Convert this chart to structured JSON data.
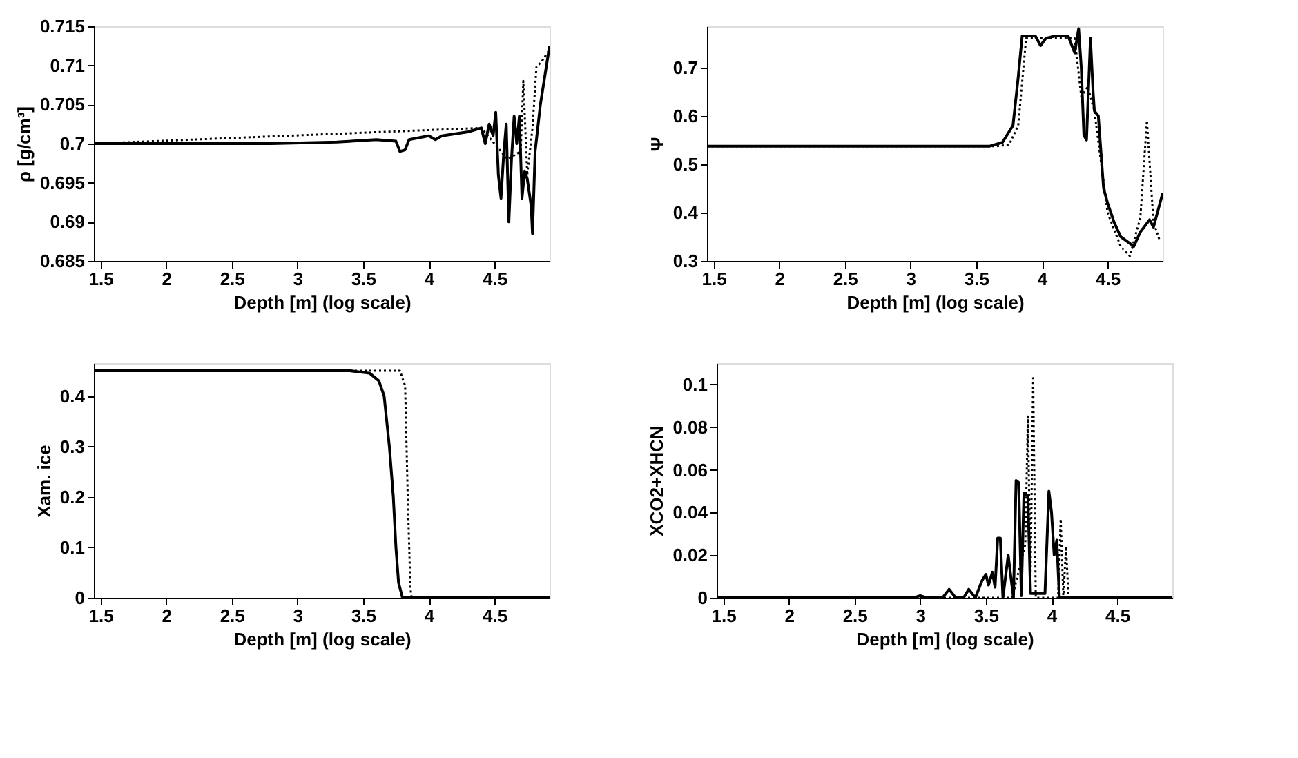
{
  "chart_data": [
    {
      "type": "line",
      "xlabel": "Depth [m] (log scale)",
      "ylabel": "ρ [g/cm³]",
      "xlim": [
        1.45,
        4.92
      ],
      "xticks": [
        1.5,
        2,
        2.5,
        3,
        3.5,
        4,
        4.5
      ],
      "ylim": [
        0.685,
        0.715
      ],
      "yticks": [
        0.685,
        0.69,
        0.695,
        0.7,
        0.705,
        0.71,
        0.715
      ],
      "grid": false,
      "series": [
        {
          "color": "#000000",
          "line_style": "solid",
          "x": [
            1.45,
            2.8,
            3.3,
            3.6,
            3.75,
            3.78,
            3.82,
            3.85,
            4.0,
            4.05,
            4.1,
            4.3,
            4.4,
            4.43,
            4.46,
            4.49,
            4.51,
            4.53,
            4.55,
            4.57,
            4.59,
            4.61,
            4.63,
            4.65,
            4.67,
            4.69,
            4.71,
            4.73,
            4.75,
            4.78,
            4.79,
            4.81,
            4.85,
            4.92
          ],
          "values": [
            0.7,
            0.7,
            0.7002,
            0.7005,
            0.7003,
            0.699,
            0.6992,
            0.7005,
            0.701,
            0.7005,
            0.701,
            0.7015,
            0.702,
            0.7,
            0.7025,
            0.701,
            0.704,
            0.696,
            0.693,
            0.6985,
            0.7025,
            0.69,
            0.698,
            0.7035,
            0.7,
            0.7035,
            0.693,
            0.6965,
            0.6955,
            0.692,
            0.6885,
            0.699,
            0.705,
            0.7125
          ]
        },
        {
          "color": "#000000",
          "line_style": "dotted",
          "x": [
            1.45,
            4.4,
            4.5,
            4.6,
            4.7,
            4.72,
            4.75,
            4.79,
            4.82,
            4.86,
            4.92
          ],
          "values": [
            0.7,
            0.702,
            0.7,
            0.698,
            0.699,
            0.708,
            0.696,
            0.702,
            0.7098,
            0.7105,
            0.712
          ]
        }
      ]
    },
    {
      "type": "line",
      "xlabel": "Depth [m] (log scale)",
      "ylabel": "Ψ",
      "xlim": [
        1.45,
        4.92
      ],
      "xticks": [
        1.5,
        2,
        2.5,
        3,
        3.5,
        4,
        4.5
      ],
      "ylim": [
        0.3,
        0.785
      ],
      "yticks": [
        0.3,
        0.4,
        0.5,
        0.6,
        0.7
      ],
      "grid": false,
      "series": [
        {
          "color": "#000000",
          "line_style": "solid",
          "x": [
            1.45,
            3.6,
            3.7,
            3.78,
            3.82,
            3.85,
            3.95,
            3.99,
            4.03,
            4.1,
            4.2,
            4.25,
            4.28,
            4.3,
            4.32,
            4.34,
            4.37,
            4.39,
            4.4,
            4.43,
            4.47,
            4.5,
            4.55,
            4.6,
            4.65,
            4.7,
            4.75,
            4.82,
            4.85,
            4.92
          ],
          "values": [
            0.537,
            0.537,
            0.545,
            0.58,
            0.68,
            0.765,
            0.765,
            0.745,
            0.76,
            0.765,
            0.765,
            0.73,
            0.78,
            0.7,
            0.56,
            0.55,
            0.76,
            0.65,
            0.61,
            0.6,
            0.45,
            0.42,
            0.38,
            0.35,
            0.34,
            0.33,
            0.36,
            0.385,
            0.37,
            0.44
          ]
        },
        {
          "color": "#000000",
          "line_style": "dotted",
          "x": [
            1.45,
            3.65,
            3.75,
            3.82,
            3.88,
            4.0,
            4.25,
            4.3,
            4.35,
            4.4,
            4.5,
            4.6,
            4.67,
            4.75,
            4.8,
            4.85,
            4.9
          ],
          "values": [
            0.537,
            0.537,
            0.54,
            0.58,
            0.76,
            0.76,
            0.76,
            0.64,
            0.66,
            0.61,
            0.4,
            0.33,
            0.31,
            0.39,
            0.59,
            0.38,
            0.34
          ]
        }
      ]
    },
    {
      "type": "line",
      "xlabel": "Depth [m] (log scale)",
      "ylabel": "Xam. ice",
      "xlim": [
        1.45,
        4.92
      ],
      "xticks": [
        1.5,
        2,
        2.5,
        3,
        3.5,
        4,
        4.5
      ],
      "ylim": [
        0,
        0.465
      ],
      "yticks": [
        0,
        0.1,
        0.2,
        0.3,
        0.4
      ],
      "grid": false,
      "series": [
        {
          "color": "#000000",
          "line_style": "solid",
          "x": [
            1.45,
            3.4,
            3.55,
            3.62,
            3.66,
            3.7,
            3.73,
            3.75,
            3.77,
            3.8,
            4.92
          ],
          "values": [
            0.45,
            0.45,
            0.445,
            0.43,
            0.4,
            0.3,
            0.2,
            0.1,
            0.03,
            0,
            0
          ]
        },
        {
          "color": "#000000",
          "line_style": "dotted",
          "x": [
            1.45,
            3.78,
            3.82,
            3.84,
            3.86,
            3.87,
            4.92
          ],
          "values": [
            0.45,
            0.45,
            0.42,
            0.2,
            0.02,
            0,
            0
          ]
        }
      ]
    },
    {
      "type": "line",
      "xlabel": "Depth [m] (log scale)",
      "ylabel": "XCO2+XHCN",
      "xlim": [
        1.45,
        4.92
      ],
      "xticks": [
        1.5,
        2,
        2.5,
        3,
        3.5,
        4,
        4.5
      ],
      "ylim": [
        0,
        0.11
      ],
      "yticks": [
        0,
        0.02,
        0.04,
        0.06,
        0.08,
        0.1
      ],
      "grid": false,
      "series": [
        {
          "color": "#000000",
          "line_style": "solid",
          "x": [
            1.45,
            2.95,
            3.0,
            3.05,
            3.17,
            3.22,
            3.27,
            3.33,
            3.37,
            3.42,
            3.47,
            3.5,
            3.52,
            3.55,
            3.57,
            3.59,
            3.61,
            3.63,
            3.67,
            3.69,
            3.71,
            3.73,
            3.75,
            3.77,
            3.79,
            3.82,
            3.84,
            3.95,
            3.98,
            4.0,
            4.02,
            4.04,
            4.06,
            4.92
          ],
          "values": [
            0,
            0,
            0.001,
            0,
            0,
            0.004,
            0,
            0,
            0.004,
            0,
            0.008,
            0.011,
            0.006,
            0.012,
            0.005,
            0.028,
            0.028,
            0,
            0.02,
            0.01,
            0,
            0.055,
            0.054,
            0.001,
            0.049,
            0.048,
            0.002,
            0.002,
            0.05,
            0.04,
            0.02,
            0.027,
            0,
            0
          ]
        },
        {
          "color": "#000000",
          "line_style": "dotted",
          "x": [
            1.45,
            3.7,
            3.8,
            3.82,
            3.84,
            3.86,
            3.88,
            4.05,
            4.07,
            4.09,
            4.11,
            4.13,
            4.92
          ],
          "values": [
            0,
            0,
            0.025,
            0.085,
            0.01,
            0.103,
            0,
            0,
            0.037,
            0,
            0.024,
            0,
            0
          ]
        }
      ]
    }
  ]
}
